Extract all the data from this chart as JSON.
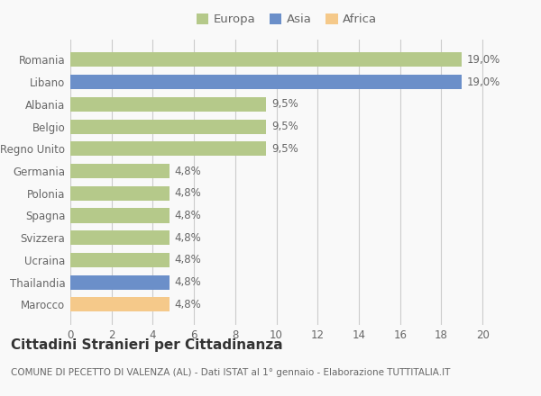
{
  "categories": [
    "Marocco",
    "Thailandia",
    "Ucraina",
    "Svizzera",
    "Spagna",
    "Polonia",
    "Germania",
    "Regno Unito",
    "Belgio",
    "Albania",
    "Libano",
    "Romania"
  ],
  "values": [
    4.8,
    4.8,
    4.8,
    4.8,
    4.8,
    4.8,
    4.8,
    9.5,
    9.5,
    9.5,
    19.0,
    19.0
  ],
  "labels": [
    "4,8%",
    "4,8%",
    "4,8%",
    "4,8%",
    "4,8%",
    "4,8%",
    "4,8%",
    "9,5%",
    "9,5%",
    "9,5%",
    "19,0%",
    "19,0%"
  ],
  "colors": [
    "#f5c98a",
    "#6b8fc9",
    "#b5c98a",
    "#b5c98a",
    "#b5c98a",
    "#b5c98a",
    "#b5c98a",
    "#b5c98a",
    "#b5c98a",
    "#b5c98a",
    "#6b8fc9",
    "#b5c98a"
  ],
  "legend_labels": [
    "Europa",
    "Asia",
    "Africa"
  ],
  "legend_colors": [
    "#b5c98a",
    "#6b8fc9",
    "#f5c98a"
  ],
  "title": "Cittadini Stranieri per Cittadinanza",
  "subtitle": "COMUNE DI PECETTO DI VALENZA (AL) - Dati ISTAT al 1° gennaio - Elaborazione TUTTITALIA.IT",
  "xlim": [
    0,
    21
  ],
  "xticks": [
    0,
    2,
    4,
    6,
    8,
    10,
    12,
    14,
    16,
    18,
    20
  ],
  "background_color": "#f9f9f9",
  "bar_height": 0.65,
  "grid_color": "#cccccc",
  "text_color": "#666666",
  "label_fontsize": 8.5,
  "tick_fontsize": 8.5,
  "title_fontsize": 11,
  "subtitle_fontsize": 7.5
}
